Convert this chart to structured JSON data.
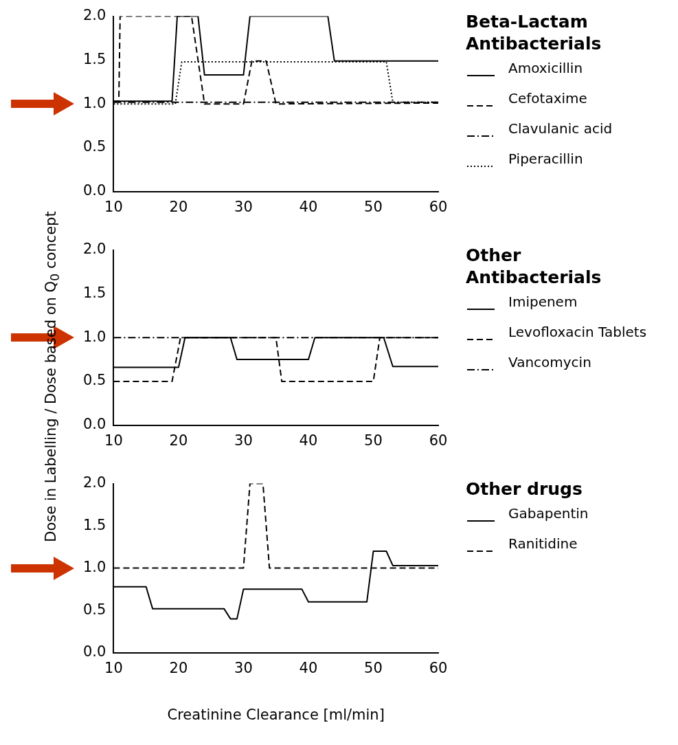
{
  "chart_data": [
    {
      "type": "line",
      "legend_title": "Beta-Lactam Antibacterials",
      "xlim": [
        10,
        60
      ],
      "ylim": [
        0,
        2
      ],
      "xticks": [
        10,
        20,
        30,
        40,
        50,
        60
      ],
      "yticks": [
        {
          "value": 0,
          "label": "0.0"
        },
        {
          "value": 0.5,
          "label": "0.5"
        },
        {
          "value": 1,
          "label": "1.0"
        },
        {
          "value": 1.5,
          "label": "1.5"
        },
        {
          "value": 2,
          "label": "2.0"
        }
      ],
      "grid": false,
      "legend": "right",
      "marker": "none",
      "series": [
        {
          "name": "Amoxicillin",
          "color": "#000000",
          "line_style": "solid",
          "x": [
            10,
            19,
            19.8,
            23,
            24,
            30,
            31,
            43,
            44,
            60
          ],
          "values": [
            1.03,
            1.03,
            2.0,
            2.0,
            1.33,
            1.33,
            2.0,
            2.0,
            1.49,
            1.49
          ]
        },
        {
          "name": "Cefotaxime",
          "color": "#000000",
          "line_style": "dashed",
          "x": [
            10,
            10.8,
            11,
            22,
            24,
            30,
            31.3,
            33.5,
            35,
            60
          ],
          "values": [
            1.03,
            1.03,
            2.0,
            2.0,
            1.0,
            1.0,
            1.49,
            1.49,
            1.0,
            1.01
          ]
        },
        {
          "name": "Clavulanic acid",
          "color": "#000000",
          "line_style": "dashdot",
          "x": [
            10,
            60
          ],
          "values": [
            1.02,
            1.02
          ]
        },
        {
          "name": "Piperacillin",
          "color": "#000000",
          "line_style": "dotted",
          "x": [
            10,
            19.5,
            20.5,
            52,
            53,
            60
          ],
          "values": [
            1.0,
            1.0,
            1.48,
            1.48,
            1.02,
            1.02
          ]
        }
      ]
    },
    {
      "type": "line",
      "legend_title": "Other Antibacterials",
      "ylabel": "Dose in Labelling / Dose based on Q$_{0}$ concept",
      "xlim": [
        10,
        60
      ],
      "ylim": [
        0,
        2
      ],
      "xticks": [
        10,
        20,
        30,
        40,
        50,
        60
      ],
      "yticks": [
        {
          "value": 0,
          "label": "0.0"
        },
        {
          "value": 0.5,
          "label": "0.5"
        },
        {
          "value": 1,
          "label": "1.0"
        },
        {
          "value": 1.5,
          "label": "1.5"
        },
        {
          "value": 2,
          "label": "2.0"
        }
      ],
      "grid": false,
      "legend": "right",
      "marker": "none",
      "series": [
        {
          "name": "Imipenem",
          "color": "#000000",
          "line_style": "solid",
          "x": [
            10,
            20,
            21,
            28,
            29,
            40,
            41,
            51.6,
            53,
            60
          ],
          "values": [
            0.66,
            0.66,
            1.0,
            1.0,
            0.75,
            0.75,
            1.0,
            1.0,
            0.67,
            0.67
          ]
        },
        {
          "name": "Levofloxacin Tablets",
          "color": "#000000",
          "line_style": "dashed",
          "x": [
            10,
            19,
            20.3,
            35,
            35.9,
            50,
            51,
            60
          ],
          "values": [
            0.5,
            0.5,
            1.0,
            1.0,
            0.5,
            0.5,
            1.0,
            1.0
          ]
        },
        {
          "name": "Vancomycin",
          "color": "#000000",
          "line_style": "dashdot",
          "x": [
            10,
            60
          ],
          "values": [
            1.0,
            1.0
          ]
        }
      ]
    },
    {
      "type": "line",
      "legend_title": "Other drugs",
      "xlabel": "Creatinine Clearance [ml/min]",
      "xlim": [
        10,
        60
      ],
      "ylim": [
        0,
        2
      ],
      "xticks": [
        10,
        20,
        30,
        40,
        50,
        60
      ],
      "yticks": [
        {
          "value": 0,
          "label": "0.0"
        },
        {
          "value": 0.5,
          "label": "0.5"
        },
        {
          "value": 1,
          "label": "1.0"
        },
        {
          "value": 1.5,
          "label": "1.5"
        },
        {
          "value": 2,
          "label": "2.0"
        }
      ],
      "grid": false,
      "legend": "right",
      "marker": "none",
      "series": [
        {
          "name": "Gabapentin",
          "color": "#000000",
          "line_style": "solid",
          "x": [
            10,
            15,
            16,
            27,
            28,
            29,
            30,
            39,
            40,
            49,
            50,
            52,
            53,
            60
          ],
          "values": [
            0.78,
            0.78,
            0.52,
            0.52,
            0.4,
            0.4,
            0.75,
            0.75,
            0.6,
            0.6,
            1.2,
            1.2,
            1.03,
            1.03
          ]
        },
        {
          "name": "Ranitidine",
          "color": "#000000",
          "line_style": "dashed",
          "x": [
            10,
            30,
            31,
            33,
            34,
            60
          ],
          "values": [
            1.0,
            1.0,
            2.0,
            2.0,
            1.0,
            1.0
          ]
        }
      ]
    }
  ]
}
